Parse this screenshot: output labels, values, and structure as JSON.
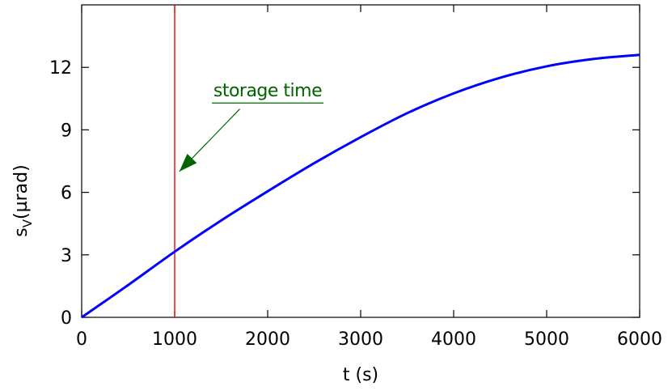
{
  "chart_data": {
    "type": "line",
    "xlabel": "t (s)",
    "ylabel_main": "s",
    "ylabel_sub": "V",
    "ylabel_unit": "(µrad)",
    "xlim": [
      0,
      6000
    ],
    "ylim": [
      0,
      15
    ],
    "xticks": [
      0,
      1000,
      2000,
      3000,
      4000,
      5000,
      6000
    ],
    "xtick_labels": [
      "0",
      "1000",
      "2000",
      "3000",
      "4000",
      "5000",
      "6000"
    ],
    "yticks": [
      0,
      3,
      6,
      9,
      12
    ],
    "ytick_labels": [
      "0",
      "3",
      "6",
      "9",
      "12"
    ],
    "grid": false,
    "series": [
      {
        "color": "#0000ff",
        "x": [
          0,
          500,
          1000,
          1500,
          2000,
          2500,
          3000,
          3500,
          4000,
          4500,
          5000,
          5500,
          6000
        ],
        "y": [
          0,
          1.55,
          3.15,
          4.65,
          6.05,
          7.4,
          8.65,
          9.8,
          10.75,
          11.5,
          12.05,
          12.4,
          12.6
        ]
      }
    ],
    "vline": {
      "x": 1000,
      "color": "#ff0000"
    },
    "annotations": [
      {
        "text": "storage time",
        "color": "#006400",
        "text_x": 2000,
        "text_y": 10.6,
        "arrow_from": [
          1700,
          10.0
        ],
        "arrow_to": [
          1050,
          7.0
        ]
      }
    ]
  }
}
